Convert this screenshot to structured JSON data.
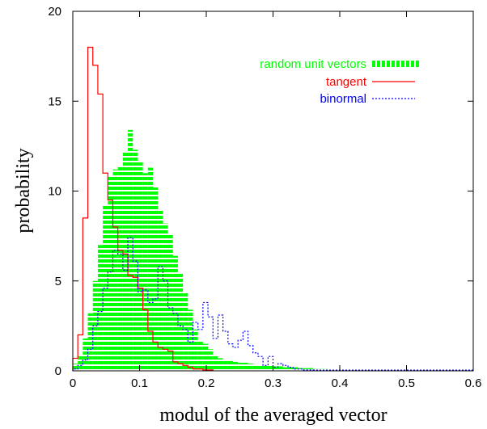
{
  "chart_data": {
    "type": "histogram",
    "xlabel": "modul of the averaged vector",
    "ylabel": "probability",
    "xlim": [
      0,
      0.6
    ],
    "ylim": [
      0,
      20
    ],
    "xticks": [
      "0",
      "0.1",
      "0.2",
      "0.3",
      "0.4",
      "0.5",
      "0.6"
    ],
    "yticks": [
      "0",
      "5",
      "10",
      "15",
      "20"
    ],
    "grid": false,
    "legend_position": "top-right",
    "series": [
      {
        "name": "random unit vectors",
        "style": "filled-hatched",
        "color": "#00ff00",
        "bin_width": 0.0075,
        "start": 0,
        "values": [
          0.4,
          0.9,
          1.8,
          3.2,
          5.0,
          7.0,
          9.2,
          10.8,
          11.2,
          11.4,
          12.2,
          13.4,
          12.3,
          11.6,
          11.0,
          11.3,
          10.2,
          8.9,
          8.2,
          7.6,
          6.4,
          5.4,
          4.4,
          3.4,
          2.3,
          1.7,
          1.5,
          1.2,
          0.9,
          0.7,
          0.6,
          0.55,
          0.5,
          0.45,
          0.45,
          0.4,
          0.35,
          0.35,
          0.3,
          0.3,
          0.25,
          0.25,
          0.2,
          0.2,
          0.2,
          0.15,
          0.15,
          0.15,
          0.1,
          0.1,
          0.1,
          0.08,
          0.08,
          0.06,
          0.05,
          0.05,
          0.04,
          0.03,
          0.02,
          0.02
        ]
      },
      {
        "name": "tangent",
        "style": "step",
        "color": "#ff0000",
        "bin_width": 0.0075,
        "start": 0,
        "values": [
          0.7,
          2.0,
          8.5,
          18.0,
          17.0,
          15.4,
          11.0,
          9.5,
          8.0,
          6.7,
          6.5,
          5.3,
          5.2,
          4.6,
          3.4,
          2.2,
          1.6,
          1.3,
          1.2,
          1.1,
          0.5,
          0.4,
          0.3,
          0.2,
          0.1,
          0.1,
          0.05,
          0.05
        ]
      },
      {
        "name": "binormal",
        "style": "dotted-step",
        "color": "#0000ff",
        "bin_width": 0.0075,
        "start": 0,
        "values": [
          0.1,
          0.3,
          0.6,
          1.2,
          2.5,
          3.3,
          4.6,
          5.5,
          6.7,
          6.5,
          5.6,
          7.4,
          6.1,
          4.4,
          4.5,
          3.8,
          4.0,
          5.8,
          5.0,
          3.5,
          3.2,
          2.5,
          2.3,
          1.6,
          2.7,
          2.3,
          3.8,
          3.0,
          1.8,
          3.1,
          2.2,
          1.5,
          1.3,
          1.7,
          2.2,
          1.4,
          1.0,
          0.8,
          0.3,
          0.8,
          0.2,
          0.4,
          0.3,
          0.2,
          0.1,
          0.1,
          0.05,
          0.05
        ]
      }
    ]
  }
}
